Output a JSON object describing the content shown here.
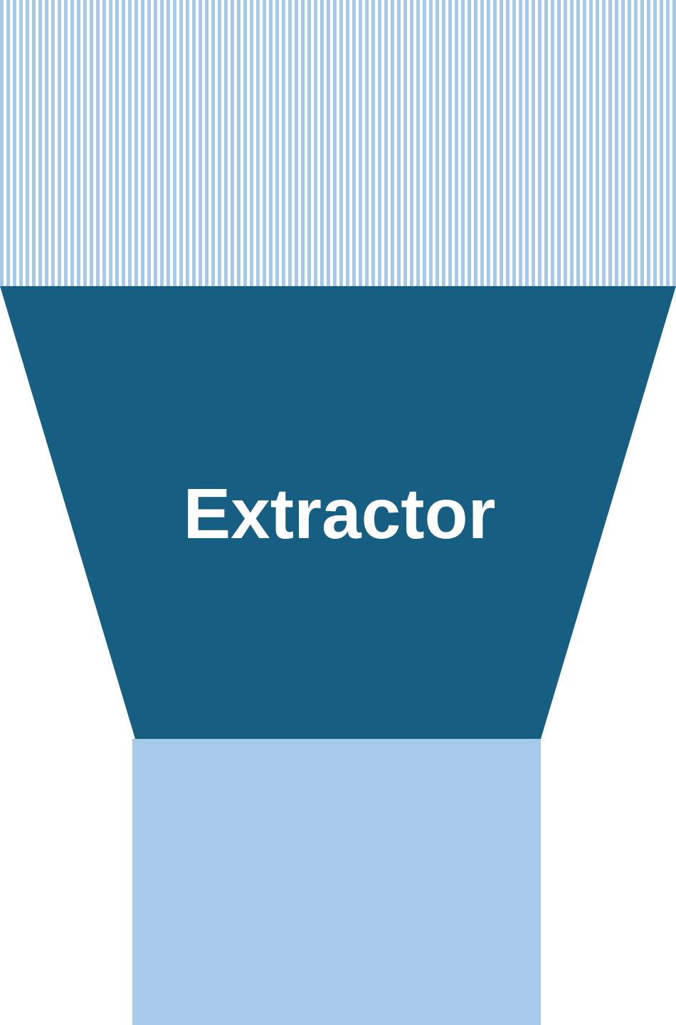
{
  "diagram": {
    "label": "Extractor",
    "colors": {
      "funnel": "#165f83",
      "stripe": "#a7c9ea",
      "output": "#a7c9ea",
      "background": "#ffffff",
      "label": "#ffffff"
    }
  }
}
